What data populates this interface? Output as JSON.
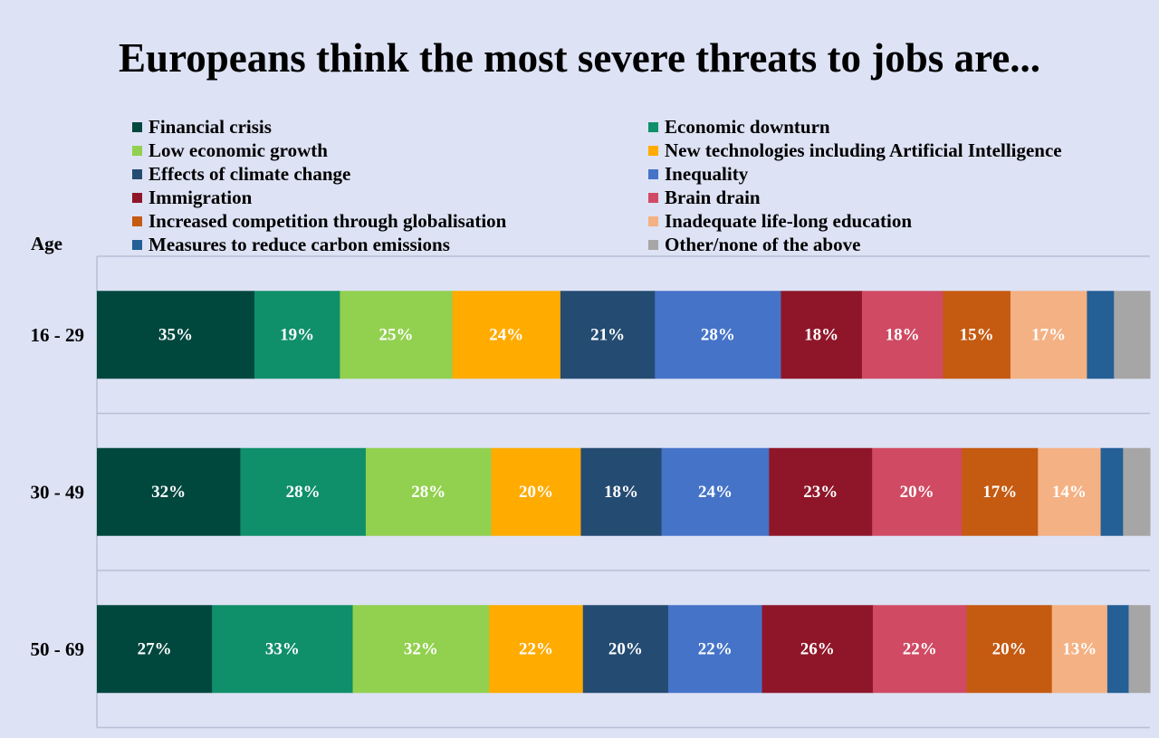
{
  "chart_data": {
    "type": "bar",
    "orientation": "horizontal",
    "stacked": true,
    "title": "Europeans think the most severe threats to jobs are...",
    "ylabel": "Age",
    "categories": [
      "16 - 29",
      "30 - 49",
      "50 - 69"
    ],
    "grid": true,
    "legend_position": "top",
    "series": [
      {
        "name": "Financial crisis",
        "color": "#00473e",
        "values": [
          35,
          32,
          27
        ]
      },
      {
        "name": "Economic downturn",
        "color": "#0f8f6a",
        "values": [
          19,
          28,
          33
        ]
      },
      {
        "name": "Low economic growth",
        "color": "#92d04f",
        "values": [
          25,
          28,
          32
        ]
      },
      {
        "name": "New technologies including Artificial Intelligence",
        "color": "#ffab00",
        "values": [
          24,
          20,
          22
        ]
      },
      {
        "name": "Effects of climate change",
        "color": "#244b72",
        "values": [
          21,
          18,
          20
        ]
      },
      {
        "name": "Inequality",
        "color": "#4573c8",
        "values": [
          28,
          24,
          22
        ]
      },
      {
        "name": "Immigration",
        "color": "#8f1629",
        "values": [
          18,
          23,
          26
        ]
      },
      {
        "name": "Brain drain",
        "color": "#d04a63",
        "values": [
          18,
          20,
          22
        ]
      },
      {
        "name": "Increased competition through globalisation",
        "color": "#c55a11",
        "values": [
          15,
          17,
          20
        ]
      },
      {
        "name": "Inadequate life-long education",
        "color": "#f4b183",
        "values": [
          17,
          14,
          13
        ]
      },
      {
        "name": "Measures to reduce carbon emissions",
        "color": "#245f96",
        "values": [
          6,
          5,
          5
        ]
      },
      {
        "name": "Other/none of the above",
        "color": "#a6a6a6",
        "values": [
          8,
          6,
          5
        ]
      }
    ],
    "value_labels": [
      [
        "35%",
        "19%",
        "25%",
        "24%",
        "21%",
        "28%",
        "18%",
        "18%",
        "15%",
        "17%",
        "",
        ""
      ],
      [
        "32%",
        "28%",
        "28%",
        "20%",
        "18%",
        "24%",
        "23%",
        "20%",
        "17%",
        "14%",
        "",
        ""
      ],
      [
        "27%",
        "33%",
        "32%",
        "22%",
        "20%",
        "22%",
        "26%",
        "22%",
        "20%",
        "13%",
        "",
        ""
      ]
    ]
  }
}
